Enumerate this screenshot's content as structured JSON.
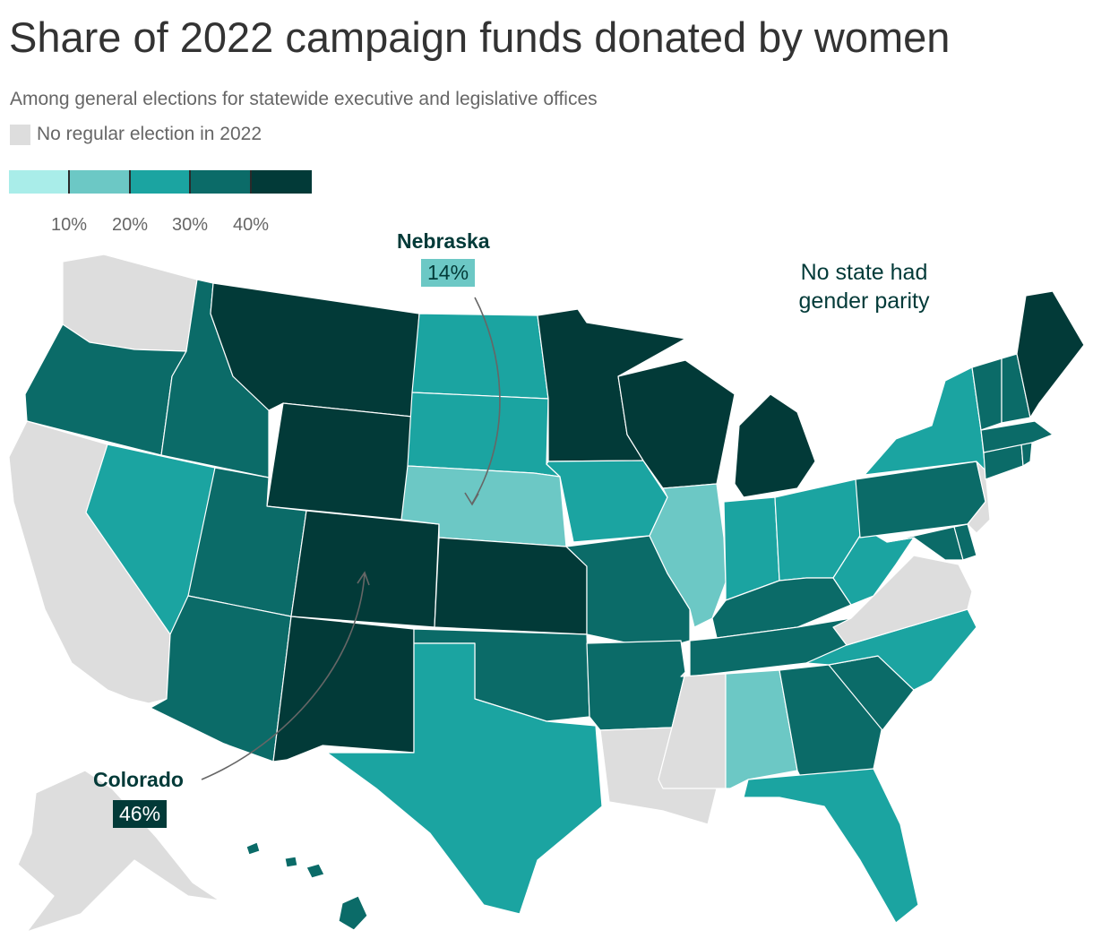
{
  "title": "Share of 2022 campaign funds donated by women",
  "subtitle": "Among general elections for statewide executive and legislative offices",
  "no_election_label": "No regular election in 2022",
  "colors": {
    "no_election": "#dddddd",
    "bins": [
      "#a9ede9",
      "#6cc8c5",
      "#1ba4a1",
      "#0b6b68",
      "#023a38"
    ],
    "border": "#ffffff",
    "annotation_text": "#023a38"
  },
  "legend": {
    "ticks": [
      "10%",
      "20%",
      "30%",
      "40%"
    ]
  },
  "callouts": {
    "nebraska": {
      "name": "Nebraska",
      "value": "14%"
    },
    "colorado": {
      "name": "Colorado",
      "value": "46%"
    }
  },
  "note": "No state had gender parity",
  "chart_data": {
    "type": "choropleth",
    "title": "Share of 2022 campaign funds donated by women",
    "subtitle": "Among general elections for statewide executive and legislative offices",
    "legend_bins": [
      "<10%",
      "10–20%",
      "20–30%",
      "30–40%",
      "≥40%"
    ],
    "legend_ticks": [
      "10%",
      "20%",
      "30%",
      "40%"
    ],
    "no_data_label": "No regular election in 2022",
    "labeled_values": {
      "Nebraska": 14,
      "Colorado": 46
    },
    "states": [
      {
        "name": "Washington",
        "bin": null
      },
      {
        "name": "Oregon",
        "bin": 3
      },
      {
        "name": "California",
        "bin": null
      },
      {
        "name": "Idaho",
        "bin": 3
      },
      {
        "name": "Nevada",
        "bin": 2
      },
      {
        "name": "Montana",
        "bin": 4
      },
      {
        "name": "Wyoming",
        "bin": 4
      },
      {
        "name": "Utah",
        "bin": 3
      },
      {
        "name": "Arizona",
        "bin": 3
      },
      {
        "name": "Colorado",
        "bin": 4
      },
      {
        "name": "New Mexico",
        "bin": 4
      },
      {
        "name": "North Dakota",
        "bin": 2
      },
      {
        "name": "South Dakota",
        "bin": 2
      },
      {
        "name": "Nebraska",
        "bin": 1
      },
      {
        "name": "Kansas",
        "bin": 4
      },
      {
        "name": "Oklahoma",
        "bin": 3
      },
      {
        "name": "Texas",
        "bin": 2
      },
      {
        "name": "Minnesota",
        "bin": 4
      },
      {
        "name": "Iowa",
        "bin": 2
      },
      {
        "name": "Missouri",
        "bin": 3
      },
      {
        "name": "Arkansas",
        "bin": 3
      },
      {
        "name": "Louisiana",
        "bin": null
      },
      {
        "name": "Wisconsin",
        "bin": 4
      },
      {
        "name": "Illinois",
        "bin": 1
      },
      {
        "name": "Michigan",
        "bin": 4
      },
      {
        "name": "Indiana",
        "bin": 2
      },
      {
        "name": "Ohio",
        "bin": 2
      },
      {
        "name": "Kentucky",
        "bin": 3
      },
      {
        "name": "Tennessee",
        "bin": 3
      },
      {
        "name": "Mississippi",
        "bin": null
      },
      {
        "name": "Alabama",
        "bin": 1
      },
      {
        "name": "Georgia",
        "bin": 3
      },
      {
        "name": "Florida",
        "bin": 2
      },
      {
        "name": "South Carolina",
        "bin": 3
      },
      {
        "name": "North Carolina",
        "bin": 2
      },
      {
        "name": "Virginia",
        "bin": null
      },
      {
        "name": "West Virginia",
        "bin": 2
      },
      {
        "name": "Pennsylvania",
        "bin": 3
      },
      {
        "name": "Maryland",
        "bin": 3
      },
      {
        "name": "Delaware",
        "bin": 3
      },
      {
        "name": "New Jersey",
        "bin": null
      },
      {
        "name": "New York",
        "bin": 2
      },
      {
        "name": "Connecticut",
        "bin": 3
      },
      {
        "name": "Rhode Island",
        "bin": 3
      },
      {
        "name": "Massachusetts",
        "bin": 3
      },
      {
        "name": "Vermont",
        "bin": 3
      },
      {
        "name": "New Hampshire",
        "bin": 3
      },
      {
        "name": "Maine",
        "bin": 4
      },
      {
        "name": "Alaska",
        "bin": null
      },
      {
        "name": "Hawaii",
        "bin": 3
      }
    ]
  }
}
